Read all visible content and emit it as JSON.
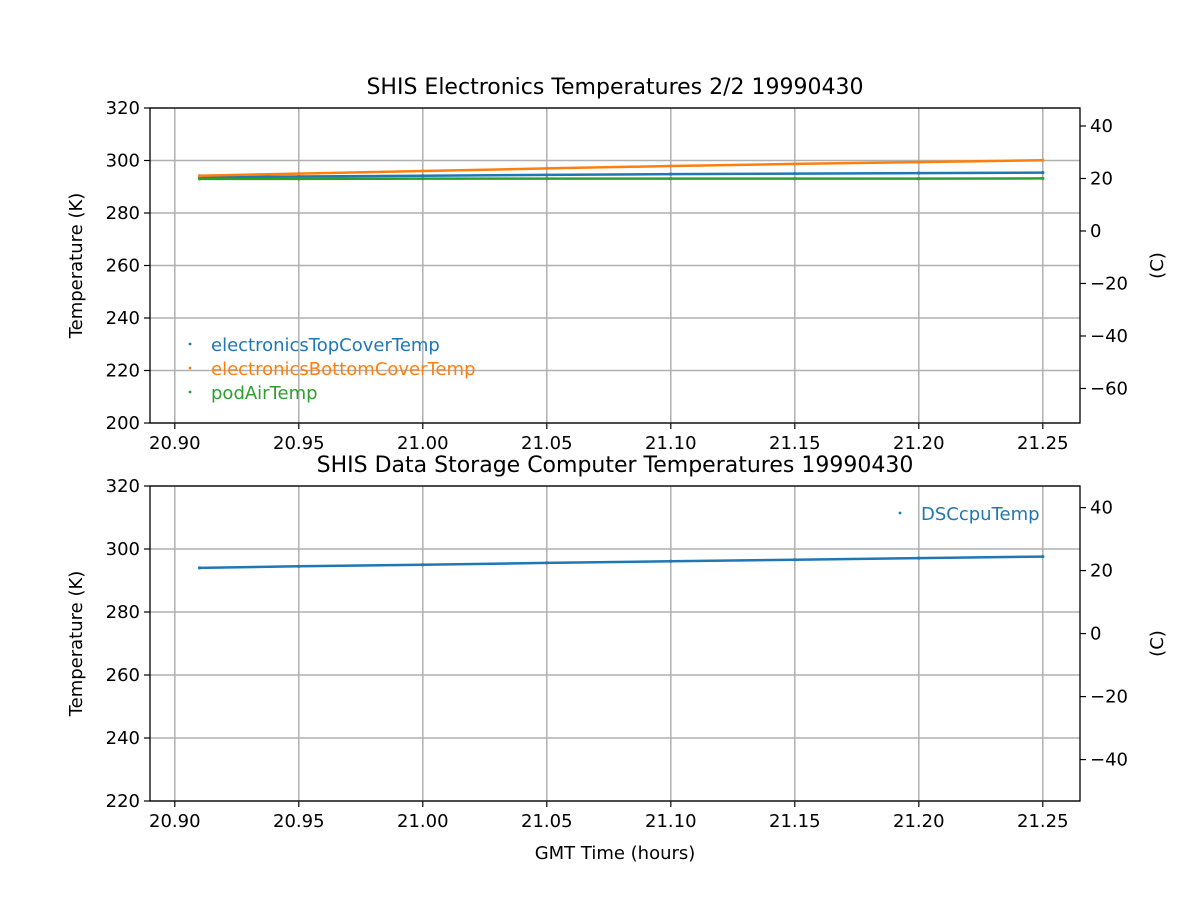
{
  "chart_data": [
    {
      "type": "scatter",
      "title": "SHIS Electronics Temperatures 2/2 19990430",
      "xlabel": "",
      "ylabel": "Temperature (K)",
      "y2label": "(C)",
      "xlim": [
        20.89,
        21.265
      ],
      "ylim": [
        200,
        320
      ],
      "y2lim": [
        -73.15,
        46.85
      ],
      "x_ticks": [
        "20.90",
        "20.95",
        "21.00",
        "21.05",
        "21.10",
        "21.15",
        "21.20",
        "21.25"
      ],
      "y_ticks": [
        "200",
        "220",
        "240",
        "260",
        "280",
        "300",
        "320"
      ],
      "y2_ticks": [
        "−60",
        "−40",
        "−20",
        "0",
        "20",
        "40"
      ],
      "grid": true,
      "legend_position": "lower-left",
      "series": [
        {
          "name": "electronicsTopCoverTemp",
          "color": "#1f77b4",
          "x": [
            20.91,
            20.95,
            21.0,
            21.05,
            21.1,
            21.15,
            21.2,
            21.25
          ],
          "y": [
            293.6,
            293.9,
            294.2,
            294.5,
            294.8,
            295.0,
            295.2,
            295.4
          ]
        },
        {
          "name": "electronicsBottomCoverTemp",
          "color": "#ff7f0e",
          "x": [
            20.91,
            20.95,
            21.0,
            21.05,
            21.1,
            21.15,
            21.2,
            21.25
          ],
          "y": [
            294.2,
            295.0,
            296.0,
            297.0,
            297.9,
            298.7,
            299.4,
            300.1
          ]
        },
        {
          "name": "podAirTemp",
          "color": "#2ca02c",
          "x": [
            20.91,
            20.95,
            21.0,
            21.05,
            21.1,
            21.15,
            21.2,
            21.25
          ],
          "y": [
            293.0,
            293.0,
            293.1,
            293.1,
            293.1,
            293.1,
            293.1,
            293.2
          ]
        }
      ]
    },
    {
      "type": "scatter",
      "title": "SHIS Data Storage Computer Temperatures 19990430",
      "xlabel": "GMT Time (hours)",
      "ylabel": "Temperature (K)",
      "y2label": "(C)",
      "xlim": [
        20.89,
        21.265
      ],
      "ylim": [
        220,
        320
      ],
      "y2lim": [
        -53.15,
        46.85
      ],
      "x_ticks": [
        "20.90",
        "20.95",
        "21.00",
        "21.05",
        "21.10",
        "21.15",
        "21.20",
        "21.25"
      ],
      "y_ticks": [
        "220",
        "240",
        "260",
        "280",
        "300",
        "320"
      ],
      "y2_ticks": [
        "−40",
        "−20",
        "0",
        "20",
        "40"
      ],
      "grid": true,
      "legend_position": "upper-right",
      "series": [
        {
          "name": "DSCcpuTemp",
          "color": "#1f77b4",
          "x": [
            20.91,
            20.95,
            21.0,
            21.05,
            21.1,
            21.15,
            21.2,
            21.25
          ],
          "y": [
            294.0,
            294.5,
            295.0,
            295.6,
            296.1,
            296.6,
            297.1,
            297.6
          ]
        }
      ]
    }
  ]
}
